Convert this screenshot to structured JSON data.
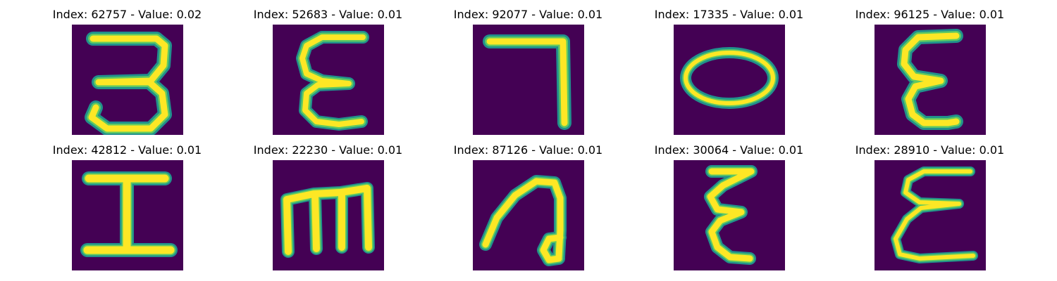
{
  "figure": {
    "colors": {
      "background": "#440154",
      "stroke_outer": "#21918c",
      "stroke_mid": "#5ec962",
      "stroke_core": "#fde725"
    },
    "panels": [
      {
        "title": "Index: 62757 - Value: 0.02",
        "glyph": "letter-3-like"
      },
      {
        "title": "Index: 52683 - Value: 0.01",
        "glyph": "letter-epsilon-like"
      },
      {
        "title": "Index: 92077 - Value: 0.01",
        "glyph": "digit-7-like"
      },
      {
        "title": "Index: 17335 - Value: 0.01",
        "glyph": "letter-o-like"
      },
      {
        "title": "Index: 96125 - Value: 0.01",
        "glyph": "letter-epsilon-like"
      },
      {
        "title": "Index: 42812 - Value: 0.01",
        "glyph": "letter-i-like"
      },
      {
        "title": "Index: 22230 - Value: 0.01",
        "glyph": "letter-m-like"
      },
      {
        "title": "Index: 87126 - Value: 0.01",
        "glyph": "letter-a-like"
      },
      {
        "title": "Index: 30064 - Value: 0.01",
        "glyph": "letter-epsilon-like"
      },
      {
        "title": "Index: 28910 - Value: 0.01",
        "glyph": "letter-epsilon-like"
      }
    ]
  }
}
